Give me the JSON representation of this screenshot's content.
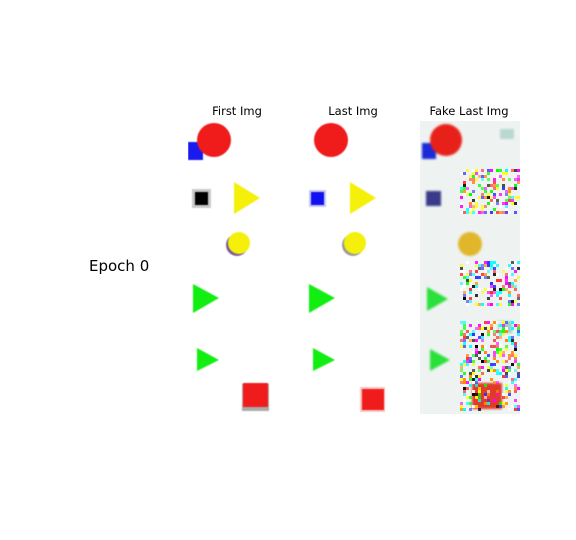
{
  "figure": {
    "row_label": "Epoch 0",
    "columns": [
      {
        "title": "First Img"
      },
      {
        "title": "Last Img"
      },
      {
        "title": "Fake Last Img"
      }
    ],
    "colors": {
      "red": "#f01b1b",
      "blue": "#1010f0",
      "yellow": "#f4f00a",
      "green": "#12ee12",
      "black": "#000000",
      "fake_background": "#e9f2ee"
    },
    "shapes": [
      "red-circle",
      "blue-square",
      "black-square",
      "yellow-triangle",
      "yellow-circle",
      "green-triangle",
      "green-triangle",
      "red-square"
    ]
  }
}
